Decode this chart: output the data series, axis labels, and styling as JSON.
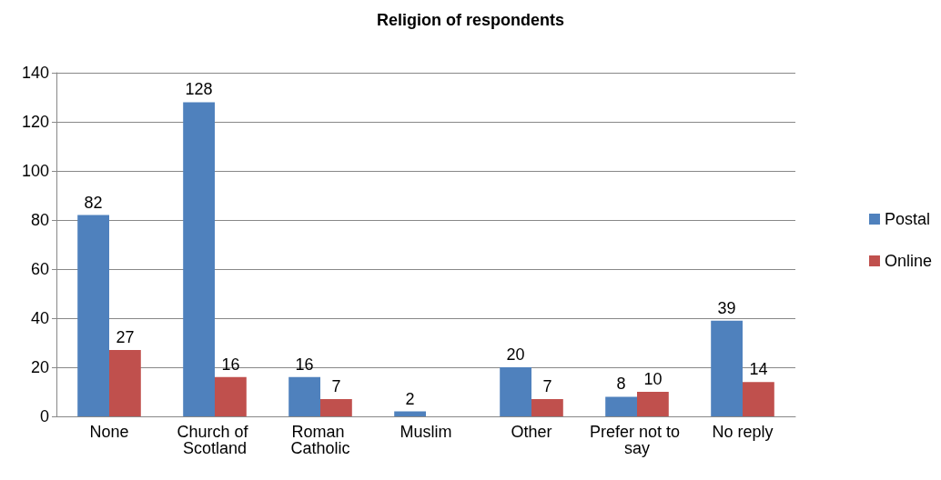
{
  "chart_data": {
    "type": "bar",
    "title": "Religion of respondents",
    "categories": [
      "None",
      "Church of Scotland",
      "Roman Catholic",
      "Muslim",
      "Other",
      "Prefer not to say",
      "No reply"
    ],
    "series": [
      {
        "name": "Postal",
        "color": "#4f81bd",
        "values": [
          82,
          128,
          16,
          2,
          20,
          8,
          39
        ]
      },
      {
        "name": "Online",
        "color": "#c0504d",
        "values": [
          27,
          16,
          7,
          null,
          7,
          10,
          14
        ]
      }
    ],
    "ylim": [
      0,
      140
    ],
    "yticks": [
      0,
      20,
      40,
      60,
      80,
      100,
      120,
      140
    ],
    "grid": "y",
    "legend": "right",
    "data_labels": true
  }
}
